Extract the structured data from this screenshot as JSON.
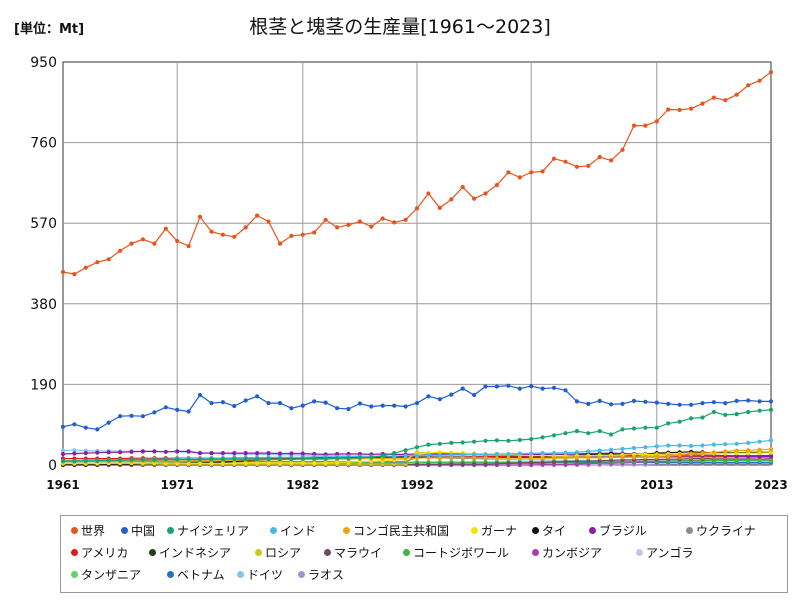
{
  "chart_data": {
    "type": "line",
    "title": "根茎と塊茎の生産量[1961～2023]",
    "unit_label": "[単位：Mt]",
    "xlabel": "",
    "ylabel": "",
    "x_tick_labels": [
      "1961",
      "1971",
      "1982",
      "1992",
      "2002",
      "2013",
      "2023"
    ],
    "y_tick_labels": [
      "0",
      "190",
      "380",
      "570",
      "760",
      "950"
    ],
    "ylim": [
      0,
      950
    ],
    "xlim": [
      1961,
      2023
    ],
    "grid": true,
    "legend_position": "bottom",
    "series": [
      {
        "name": "世界",
        "color": "#e8541e",
        "values": [
          455,
          450,
          465,
          478,
          485,
          505,
          522,
          532,
          522,
          557,
          528,
          516,
          585,
          550,
          543,
          538,
          560,
          588,
          574,
          522,
          540,
          543,
          548,
          578,
          560,
          566,
          574,
          562,
          581,
          572,
          578,
          605,
          640,
          606,
          626,
          655,
          628,
          640,
          660,
          690,
          678,
          690,
          692,
          722,
          715,
          703,
          705,
          726,
          718,
          743,
          800,
          800,
          810,
          838,
          837,
          840,
          852,
          866,
          860,
          873,
          895,
          906,
          926
        ]
      },
      {
        "name": "中国",
        "color": "#1f5fd0",
        "values": [
          90,
          96,
          88,
          84,
          100,
          115,
          116,
          115,
          124,
          136,
          130,
          126,
          165,
          146,
          148,
          139,
          152,
          162,
          146,
          146,
          134,
          140,
          150,
          147,
          134,
          132,
          145,
          138,
          140,
          140,
          138,
          146,
          162,
          155,
          166,
          180,
          165,
          185,
          185,
          187,
          180,
          186,
          180,
          182,
          176,
          150,
          144,
          151,
          143,
          144,
          151,
          149,
          147,
          144,
          142,
          142,
          146,
          148,
          146,
          151,
          152,
          150,
          150
        ]
      },
      {
        "name": "ナイジェリア",
        "color": "#1aa36b",
        "values": [
          9,
          9,
          10,
          10,
          11,
          11,
          12,
          12,
          12,
          13,
          13,
          13,
          13,
          14,
          14,
          14,
          14,
          14,
          14,
          14,
          14,
          15,
          15,
          15,
          16,
          16,
          17,
          18,
          22,
          28,
          35,
          42,
          48,
          50,
          52,
          53,
          55,
          57,
          58,
          57,
          59,
          61,
          65,
          70,
          75,
          80,
          75,
          80,
          72,
          84,
          86,
          88,
          88,
          98,
          102,
          110,
          112,
          125,
          118,
          120,
          125,
          128,
          130
        ]
      },
      {
        "name": "インド",
        "color": "#49b8ea",
        "values": [
          10,
          10,
          11,
          11,
          12,
          12,
          13,
          13,
          14,
          14,
          15,
          15,
          15,
          16,
          16,
          16,
          17,
          17,
          18,
          18,
          18,
          18,
          19,
          19,
          19,
          20,
          20,
          20,
          21,
          21,
          22,
          22,
          23,
          23,
          24,
          24,
          25,
          25,
          26,
          26,
          27,
          27,
          28,
          28,
          29,
          30,
          32,
          34,
          36,
          38,
          40,
          42,
          44,
          46,
          46,
          45,
          46,
          48,
          49,
          50,
          52,
          55,
          58
        ]
      },
      {
        "name": "コンゴ民主共和国",
        "color": "#f0a30c",
        "values": [
          8,
          8,
          8,
          9,
          9,
          9,
          9,
          10,
          10,
          10,
          10,
          10,
          11,
          11,
          11,
          11,
          12,
          12,
          12,
          12,
          13,
          13,
          13,
          14,
          14,
          14,
          15,
          15,
          15,
          16,
          16,
          16,
          17,
          17,
          17,
          17,
          17,
          17,
          16,
          16,
          16,
          16,
          16,
          16,
          16,
          17,
          17,
          17,
          18,
          18,
          18,
          19,
          20,
          22,
          24,
          27,
          28,
          30,
          32,
          34,
          35,
          36,
          37
        ]
      },
      {
        "name": "ガーナ",
        "color": "#f2e205",
        "values": [
          3,
          3,
          3,
          3,
          4,
          4,
          4,
          4,
          4,
          4,
          4,
          4,
          4,
          4,
          4,
          4,
          5,
          5,
          5,
          5,
          5,
          5,
          4,
          5,
          6,
          7,
          8,
          9,
          10,
          12,
          14,
          26,
          28,
          30,
          29,
          28,
          27,
          26,
          25,
          24,
          23,
          22,
          22,
          21,
          21,
          22,
          22,
          23,
          23,
          24,
          24,
          25,
          25,
          26,
          26,
          26,
          26,
          27,
          27,
          28,
          28,
          28,
          29
        ]
      },
      {
        "name": "タイ",
        "color": "#111111",
        "values": [
          1,
          1,
          1,
          1,
          2,
          2,
          2,
          3,
          3,
          4,
          4,
          5,
          5,
          6,
          7,
          8,
          10,
          11,
          12,
          13,
          14,
          15,
          16,
          17,
          16,
          17,
          18,
          19,
          20,
          20,
          19,
          18,
          18,
          17,
          17,
          17,
          17,
          17,
          17,
          18,
          18,
          18,
          19,
          20,
          21,
          23,
          24,
          25,
          26,
          24,
          22,
          26,
          28,
          29,
          30,
          31,
          30,
          29,
          29,
          29,
          30,
          30,
          30
        ]
      },
      {
        "name": "ブラジル",
        "color": "#8b1da8",
        "values": [
          26,
          27,
          28,
          29,
          30,
          30,
          31,
          32,
          32,
          31,
          32,
          32,
          28,
          28,
          28,
          28,
          28,
          28,
          28,
          27,
          27,
          27,
          26,
          25,
          26,
          26,
          26,
          25,
          26,
          25,
          25,
          26,
          26,
          26,
          26,
          26,
          25,
          25,
          25,
          25,
          25,
          25,
          25,
          25,
          25,
          26,
          27,
          27,
          28,
          27,
          26,
          25,
          25,
          25,
          24,
          24,
          23,
          23,
          22,
          21,
          20,
          20,
          20
        ]
      },
      {
        "name": "ウクライナ",
        "color": "#8c8c8c",
        "values": [
          8,
          8,
          8,
          8,
          8,
          8,
          8,
          8,
          8,
          8,
          8,
          8,
          8,
          8,
          8,
          8,
          8,
          8,
          8,
          8,
          8,
          8,
          8,
          8,
          8,
          8,
          8,
          8,
          8,
          8,
          8,
          18,
          21,
          20,
          19,
          19,
          18,
          18,
          17,
          18,
          18,
          18,
          18,
          18,
          18,
          19,
          20,
          20,
          20,
          19,
          19,
          20,
          21,
          21,
          22,
          22,
          22,
          22,
          22,
          21,
          20,
          20,
          19
        ]
      },
      {
        "name": "アメリカ",
        "color": "#e8141c",
        "values": [
          15,
          15,
          15,
          15,
          15,
          15,
          16,
          16,
          16,
          16,
          16,
          16,
          16,
          16,
          16,
          17,
          17,
          17,
          17,
          17,
          17,
          17,
          17,
          17,
          17,
          18,
          18,
          18,
          18,
          18,
          19,
          19,
          19,
          20,
          20,
          20,
          20,
          20,
          20,
          21,
          21,
          21,
          21,
          21,
          21,
          20,
          20,
          20,
          20,
          20,
          20,
          20,
          20,
          20,
          20,
          20,
          20,
          20,
          20,
          20,
          20,
          19,
          19
        ]
      },
      {
        "name": "インドネシア",
        "color": "#1c3f14",
        "values": [
          10,
          10,
          11,
          11,
          11,
          12,
          12,
          12,
          13,
          13,
          13,
          14,
          14,
          14,
          14,
          15,
          15,
          15,
          15,
          15,
          16,
          16,
          16,
          16,
          17,
          17,
          17,
          18,
          18,
          18,
          18,
          18,
          18,
          18,
          18,
          18,
          18,
          18,
          18,
          18,
          18,
          18,
          18,
          18,
          18,
          19,
          19,
          19,
          20,
          20,
          20,
          20,
          21,
          21,
          21,
          21,
          22,
          22,
          22,
          22,
          22,
          22,
          22
        ]
      },
      {
        "name": "ロシア",
        "color": "#c8cc14",
        "values": [
          2,
          2,
          2,
          2,
          2,
          2,
          2,
          2,
          2,
          2,
          2,
          2,
          2,
          2,
          2,
          2,
          2,
          2,
          2,
          2,
          2,
          2,
          2,
          2,
          2,
          2,
          2,
          2,
          2,
          2,
          2,
          30,
          28,
          27,
          26,
          25,
          24,
          23,
          22,
          22,
          21,
          21,
          20,
          20,
          20,
          20,
          19,
          19,
          19,
          18,
          18,
          18,
          18,
          18,
          18,
          18,
          18,
          18,
          18,
          18,
          18,
          18,
          18
        ]
      },
      {
        "name": "マラウイ",
        "color": "#6e4c68",
        "values": [
          1,
          1,
          1,
          1,
          1,
          1,
          1,
          1,
          1,
          1,
          1,
          1,
          1,
          1,
          1,
          1,
          1,
          1,
          1,
          1,
          1,
          1,
          1,
          1,
          1,
          1,
          1,
          1,
          1,
          1,
          1,
          1,
          1,
          1,
          2,
          2,
          2,
          2,
          3,
          4,
          5,
          6,
          6,
          7,
          8,
          9,
          9,
          10,
          11,
          12,
          12,
          13,
          13,
          14,
          14,
          15,
          15,
          16,
          16,
          17,
          17,
          18,
          18
        ]
      },
      {
        "name": "コートジボワール",
        "color": "#3ab54a",
        "values": [
          2,
          2,
          2,
          2,
          2,
          3,
          3,
          3,
          3,
          3,
          3,
          3,
          3,
          3,
          3,
          3,
          4,
          4,
          4,
          4,
          4,
          4,
          4,
          5,
          5,
          5,
          5,
          5,
          5,
          5,
          5,
          5,
          5,
          5,
          5,
          6,
          6,
          6,
          6,
          6,
          6,
          6,
          6,
          6,
          7,
          7,
          7,
          7,
          8,
          8,
          8,
          9,
          9,
          9,
          10,
          10,
          10,
          11,
          11,
          11,
          12,
          12,
          12
        ]
      },
      {
        "name": "カンボジア",
        "color": "#b23ab0",
        "values": [
          0,
          0,
          0,
          0,
          0,
          0,
          0,
          0,
          0,
          0,
          0,
          0,
          0,
          0,
          0,
          0,
          0,
          0,
          0,
          0,
          0,
          0,
          0,
          0,
          0,
          0,
          0,
          0,
          0,
          0,
          0,
          0,
          0,
          0,
          0,
          0,
          0,
          0,
          0,
          0,
          0,
          0,
          1,
          1,
          1,
          2,
          3,
          4,
          4,
          5,
          6,
          7,
          8,
          9,
          10,
          10,
          11,
          12,
          12,
          13,
          14,
          14,
          15
        ]
      },
      {
        "name": "アンゴラ",
        "color": "#c9c3e8",
        "values": [
          2,
          2,
          2,
          2,
          2,
          2,
          2,
          2,
          2,
          2,
          2,
          2,
          2,
          2,
          2,
          2,
          2,
          2,
          2,
          2,
          2,
          2,
          2,
          2,
          2,
          2,
          2,
          2,
          2,
          2,
          3,
          3,
          3,
          3,
          3,
          4,
          4,
          5,
          5,
          6,
          6,
          7,
          7,
          7,
          8,
          8,
          9,
          9,
          9,
          10,
          10,
          11,
          11,
          12,
          12,
          12,
          13,
          13,
          13,
          14,
          14,
          14,
          14
        ]
      },
      {
        "name": "タンザニア",
        "color": "#66d060",
        "values": [
          4,
          4,
          4,
          4,
          4,
          4,
          4,
          4,
          5,
          5,
          5,
          5,
          5,
          5,
          5,
          5,
          5,
          5,
          5,
          5,
          6,
          6,
          6,
          6,
          6,
          6,
          6,
          6,
          6,
          6,
          6,
          7,
          7,
          7,
          7,
          7,
          7,
          7,
          7,
          7,
          7,
          8,
          8,
          8,
          8,
          8,
          8,
          8,
          8,
          8,
          8,
          9,
          9,
          9,
          9,
          9,
          9,
          10,
          10,
          10,
          10,
          10,
          10
        ]
      },
      {
        "name": "ベトナム",
        "color": "#2870c0",
        "values": [
          3,
          3,
          3,
          3,
          3,
          3,
          3,
          3,
          3,
          3,
          3,
          3,
          3,
          3,
          3,
          3,
          4,
          4,
          4,
          4,
          4,
          4,
          4,
          4,
          4,
          4,
          4,
          4,
          4,
          4,
          4,
          4,
          4,
          4,
          4,
          4,
          4,
          4,
          4,
          4,
          4,
          4,
          4,
          5,
          5,
          5,
          5,
          5,
          5,
          5,
          6,
          6,
          6,
          6,
          6,
          6,
          6,
          6,
          6,
          6,
          6,
          6,
          6
        ]
      },
      {
        "name": "ドイツ",
        "color": "#86c6ec",
        "values": [
          34,
          35,
          34,
          33,
          33,
          32,
          32,
          32,
          32,
          31,
          31,
          30,
          29,
          28,
          27,
          26,
          26,
          25,
          25,
          24,
          24,
          23,
          23,
          22,
          22,
          21,
          21,
          21,
          20,
          20,
          20,
          19,
          18,
          17,
          16,
          15,
          15,
          14,
          13,
          13,
          12,
          12,
          12,
          11,
          11,
          11,
          11,
          11,
          11,
          11,
          11,
          11,
          11,
          11,
          11,
          11,
          10,
          10,
          10,
          10,
          10,
          10,
          10
        ]
      },
      {
        "name": "ラオス",
        "color": "#a891d0",
        "values": [
          0,
          0,
          0,
          0,
          0,
          0,
          0,
          0,
          0,
          0,
          0,
          0,
          0,
          0,
          0,
          0,
          0,
          0,
          0,
          0,
          0,
          0,
          0,
          0,
          0,
          0,
          0,
          0,
          0,
          0,
          0,
          0,
          0,
          0,
          0,
          0,
          0,
          0,
          0,
          0,
          0,
          0,
          0,
          0,
          0,
          0,
          0,
          0,
          1,
          1,
          1,
          1,
          2,
          2,
          2,
          3,
          3,
          3,
          3,
          3,
          3,
          3,
          3
        ]
      }
    ]
  }
}
